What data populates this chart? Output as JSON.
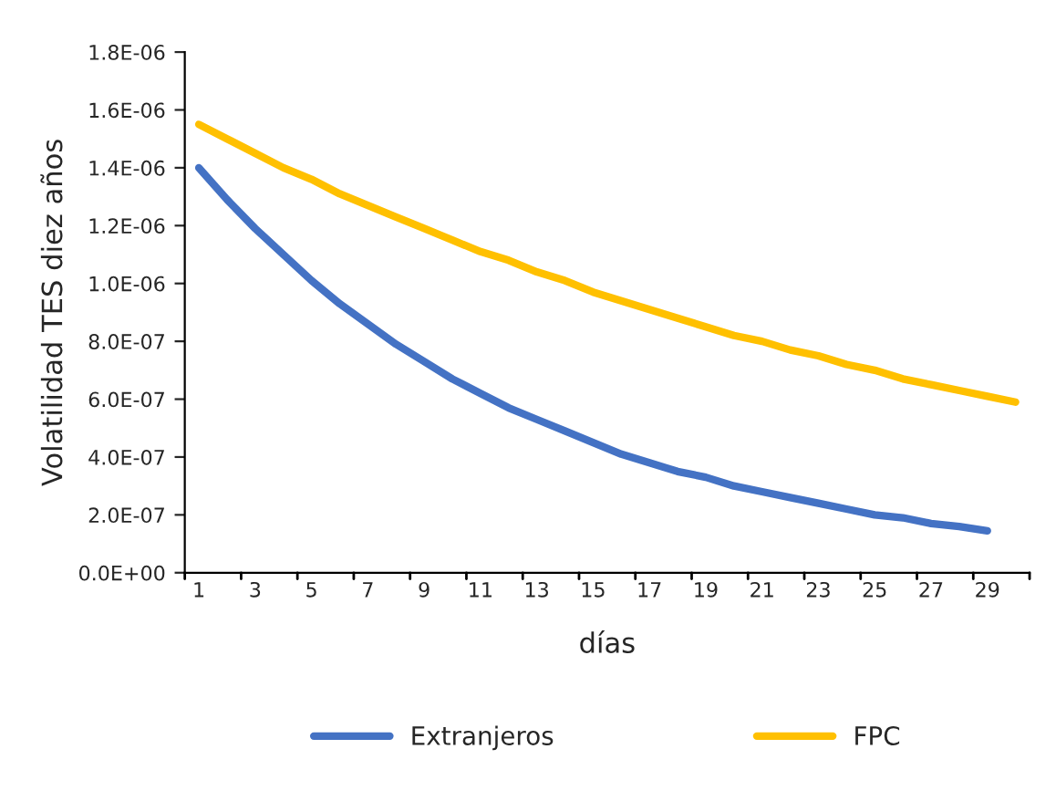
{
  "chart_data": {
    "type": "line",
    "xlabel": "días",
    "ylabel": "Volatilidad TES diez años",
    "categories": [
      "1",
      null,
      "3",
      null,
      "5",
      null,
      "7",
      null,
      "9",
      null,
      "11",
      null,
      "13",
      null,
      "15",
      null,
      "17",
      null,
      "19",
      null,
      "21",
      null,
      "23",
      null,
      "25",
      null,
      "27",
      null,
      "29",
      null
    ],
    "series": [
      {
        "name": "Extranjeros",
        "color": "#4472c4",
        "values": [
          1.4e-06,
          1.29e-06,
          1.19e-06,
          1.1e-06,
          1.01e-06,
          9.3e-07,
          8.6e-07,
          7.9e-07,
          7.3e-07,
          6.7e-07,
          6.2e-07,
          5.7e-07,
          5.3e-07,
          4.9e-07,
          4.5e-07,
          4.1e-07,
          3.8e-07,
          3.5e-07,
          3.3e-07,
          3e-07,
          2.8e-07,
          2.6e-07,
          2.4e-07,
          2.2e-07,
          2e-07,
          1.9e-07,
          1.7e-07,
          1.6e-07,
          1.45e-07,
          null
        ]
      },
      {
        "name": "FPC",
        "color": "#ffc000",
        "values": [
          1.55e-06,
          1.5e-06,
          1.45e-06,
          1.4e-06,
          1.36e-06,
          1.31e-06,
          1.27e-06,
          1.23e-06,
          1.19e-06,
          1.15e-06,
          1.11e-06,
          1.08e-06,
          1.04e-06,
          1.01e-06,
          9.7e-07,
          9.4e-07,
          9.1e-07,
          8.8e-07,
          8.5e-07,
          8.2e-07,
          8e-07,
          7.7e-07,
          7.5e-07,
          7.2e-07,
          7e-07,
          6.7e-07,
          6.5e-07,
          6.3e-07,
          6.1e-07,
          5.9e-07
        ]
      }
    ],
    "ylim": [
      0,
      1.8e-06
    ],
    "yticks": [
      {
        "value": 0,
        "label": "0.0E+00"
      },
      {
        "value": 2e-07,
        "label": "2.0E-07"
      },
      {
        "value": 4e-07,
        "label": "4.0E-07"
      },
      {
        "value": 6e-07,
        "label": "6.0E-07"
      },
      {
        "value": 8e-07,
        "label": "8.0E-07"
      },
      {
        "value": 1e-06,
        "label": "1.0E-06"
      },
      {
        "value": 1.2e-06,
        "label": "1.2E-06"
      },
      {
        "value": 1.4e-06,
        "label": "1.4E-06"
      },
      {
        "value": 1.6e-06,
        "label": "1.6E-06"
      },
      {
        "value": 1.8e-06,
        "label": "1.8E-06"
      }
    ],
    "grid": false,
    "legend": "bottom",
    "marker": "none",
    "line_style": "solid"
  }
}
